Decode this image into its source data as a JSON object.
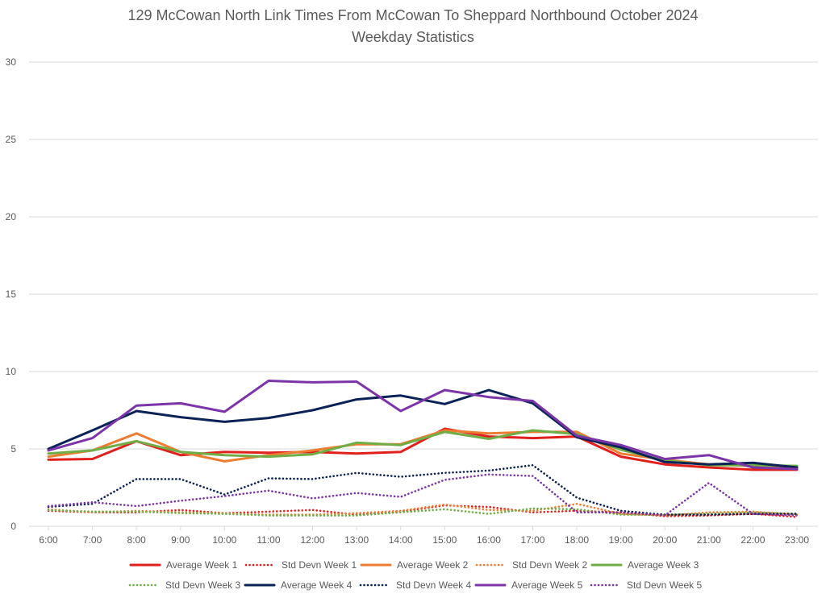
{
  "chart_data": {
    "type": "line",
    "title": "129 McCowan North Link Times From McCowan To Sheppard Northbound October 2024",
    "subtitle": "Weekday Statistics",
    "xlabel": "",
    "ylabel": "",
    "ylim": [
      0,
      30
    ],
    "yticks": [
      "0",
      "5",
      "10",
      "15",
      "20",
      "25",
      "30"
    ],
    "grid": true,
    "legend_position": "bottom",
    "categories": [
      "6:00",
      "7:00",
      "8:00",
      "9:00",
      "10:00",
      "11:00",
      "12:00",
      "13:00",
      "14:00",
      "15:00",
      "16:00",
      "17:00",
      "18:00",
      "19:00",
      "20:00",
      "21:00",
      "22:00",
      "23:00"
    ],
    "series": [
      {
        "name": "Average Week 1",
        "color": "#e0201c",
        "style": "solid",
        "values": [
          4.3,
          4.35,
          5.5,
          4.6,
          4.8,
          4.75,
          4.8,
          4.7,
          4.8,
          6.3,
          5.8,
          5.7,
          5.8,
          4.5,
          4.0,
          3.8,
          3.65,
          3.65
        ]
      },
      {
        "name": "Std Devn Week 1",
        "color": "#e0201c",
        "style": "dotted",
        "values": [
          1.0,
          0.9,
          0.9,
          1.05,
          0.85,
          0.95,
          1.05,
          0.75,
          0.95,
          1.35,
          1.25,
          0.9,
          1.0,
          0.9,
          0.65,
          0.7,
          0.8,
          0.6
        ]
      },
      {
        "name": "Average Week 2",
        "color": "#ed7d31",
        "style": "solid",
        "values": [
          4.5,
          4.9,
          6.0,
          4.8,
          4.2,
          4.6,
          4.9,
          5.3,
          5.3,
          6.2,
          6.0,
          6.1,
          6.1,
          4.7,
          4.3,
          4.0,
          3.9,
          3.7
        ]
      },
      {
        "name": "Std Devn Week 2",
        "color": "#ed7d31",
        "style": "dotted",
        "values": [
          1.1,
          0.9,
          1.0,
          0.9,
          0.85,
          0.75,
          0.75,
          0.85,
          1.0,
          1.4,
          1.05,
          1.0,
          1.45,
          0.8,
          0.7,
          0.9,
          0.95,
          0.75
        ]
      },
      {
        "name": "Average Week 3",
        "color": "#70ad47",
        "style": "solid",
        "values": [
          4.7,
          4.9,
          5.5,
          4.8,
          4.6,
          4.5,
          4.65,
          5.4,
          5.25,
          6.1,
          5.65,
          6.2,
          5.95,
          4.95,
          4.25,
          3.95,
          3.95,
          3.9
        ]
      },
      {
        "name": "Std Devn Week 3",
        "color": "#70ad47",
        "style": "dotted",
        "values": [
          1.05,
          0.95,
          0.95,
          0.85,
          0.8,
          0.7,
          0.7,
          0.7,
          0.9,
          1.1,
          0.8,
          1.15,
          1.1,
          0.75,
          0.75,
          0.8,
          0.9,
          0.8
        ]
      },
      {
        "name": "Average Week 4",
        "color": "#0b2257",
        "style": "solid",
        "values": [
          5.0,
          6.2,
          7.45,
          7.05,
          6.75,
          7.0,
          7.5,
          8.2,
          8.45,
          7.9,
          8.8,
          7.95,
          5.75,
          5.1,
          4.15,
          4.0,
          4.1,
          3.8
        ]
      },
      {
        "name": "Std Devn Week 4",
        "color": "#0b2257",
        "style": "dotted",
        "values": [
          1.25,
          1.45,
          3.05,
          3.05,
          2.05,
          3.1,
          3.05,
          3.45,
          3.2,
          3.45,
          3.6,
          3.95,
          1.85,
          1.0,
          0.75,
          0.75,
          0.8,
          0.8
        ]
      },
      {
        "name": "Average Week 5",
        "color": "#7b35a8",
        "style": "solid",
        "values": [
          4.9,
          5.7,
          7.8,
          7.95,
          7.4,
          9.4,
          9.3,
          9.35,
          7.45,
          8.8,
          8.35,
          8.1,
          5.85,
          5.25,
          4.35,
          4.6,
          3.8,
          3.7
        ]
      },
      {
        "name": "Std Devn Week 5",
        "color": "#7b35a8",
        "style": "dotted",
        "values": [
          1.3,
          1.55,
          1.3,
          1.65,
          1.95,
          2.3,
          1.8,
          2.15,
          1.9,
          3.0,
          3.35,
          3.25,
          0.9,
          0.9,
          0.7,
          2.8,
          0.8,
          0.7
        ]
      }
    ]
  }
}
